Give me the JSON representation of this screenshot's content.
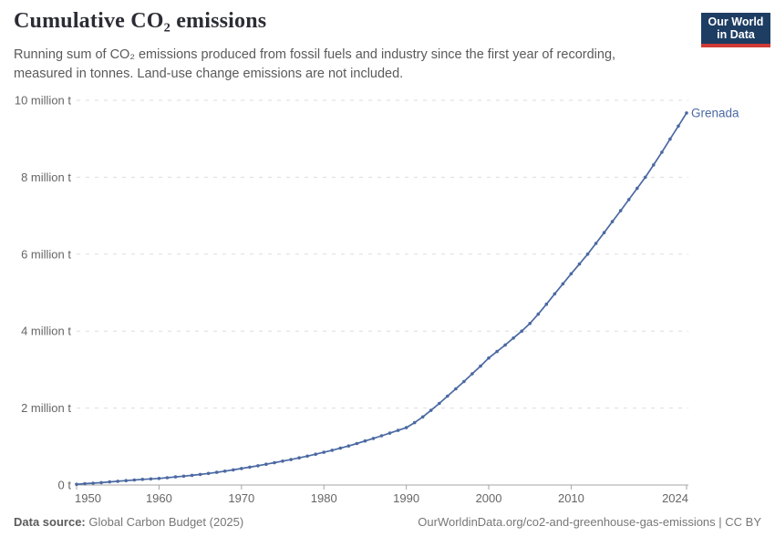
{
  "header": {
    "title": "Cumulative CO₂ emissions",
    "subtitle_line1": "Running sum of CO₂ emissions produced from fossil fuels and industry since the first year of recording,",
    "subtitle_line2": "measured in tonnes. Land-use change emissions are not included.",
    "logo_line1": "Our World",
    "logo_line2": "in Data"
  },
  "footer": {
    "source_label": "Data source:",
    "source_value": "Global Carbon Budget (2025)",
    "right": "OurWorldinData.org/co2-and-greenhouse-gas-emissions | CC BY"
  },
  "colors": {
    "line": "#4b69a2",
    "entity_label": "#4b69a2",
    "logo_bg": "#1d3d63",
    "logo_stripe": "#cf3a34",
    "grid": "#dddddd",
    "axis": "#a5a5a5",
    "tick_text": "#666666"
  },
  "chart_data": {
    "type": "line",
    "title": "Cumulative CO₂ emissions",
    "xlabel": "",
    "ylabel": "",
    "unit": "tonnes",
    "entity_label": "Grenada",
    "x_range": [
      1950,
      2024
    ],
    "ylim": [
      0,
      10000000
    ],
    "grid": "horizontal-dashed",
    "legend_position": "end-of-line",
    "yticks": [
      {
        "value": 0,
        "label": "0 t"
      },
      {
        "value": 2000000,
        "label": "2 million t"
      },
      {
        "value": 4000000,
        "label": "4 million t"
      },
      {
        "value": 6000000,
        "label": "6 million t"
      },
      {
        "value": 8000000,
        "label": "8 million t"
      },
      {
        "value": 10000000,
        "label": "10 million t"
      }
    ],
    "xticks": [
      {
        "value": 1950,
        "label": "1950"
      },
      {
        "value": 1960,
        "label": "1960"
      },
      {
        "value": 1970,
        "label": "1970"
      },
      {
        "value": 1980,
        "label": "1980"
      },
      {
        "value": 1990,
        "label": "1990"
      },
      {
        "value": 2000,
        "label": "2000"
      },
      {
        "value": 2010,
        "label": "2010"
      },
      {
        "value": 2024,
        "label": "2024"
      }
    ],
    "series": [
      {
        "name": "Grenada",
        "color": "#4b69a2",
        "years": [
          1950,
          1951,
          1952,
          1953,
          1954,
          1955,
          1956,
          1957,
          1958,
          1959,
          1960,
          1961,
          1962,
          1963,
          1964,
          1965,
          1966,
          1967,
          1968,
          1969,
          1970,
          1971,
          1972,
          1973,
          1974,
          1975,
          1976,
          1977,
          1978,
          1979,
          1980,
          1981,
          1982,
          1983,
          1984,
          1985,
          1986,
          1987,
          1988,
          1989,
          1990,
          1991,
          1992,
          1993,
          1994,
          1995,
          1996,
          1997,
          1998,
          1999,
          2000,
          2001,
          2002,
          2003,
          2004,
          2005,
          2006,
          2007,
          2008,
          2009,
          2010,
          2011,
          2012,
          2013,
          2014,
          2015,
          2016,
          2017,
          2018,
          2019,
          2020,
          2021,
          2022,
          2023,
          2024
        ],
        "values": [
          20000,
          35000,
          48000,
          62000,
          80000,
          97000,
          113000,
          130000,
          146000,
          158000,
          170000,
          190000,
          210000,
          230000,
          252000,
          275000,
          300000,
          330000,
          360000,
          393000,
          430000,
          465000,
          500000,
          540000,
          580000,
          620000,
          662000,
          706000,
          752000,
          800000,
          850000,
          902000,
          957000,
          1015000,
          1078000,
          1145000,
          1212000,
          1280000,
          1349000,
          1419000,
          1490000,
          1620000,
          1770000,
          1940000,
          2120000,
          2310000,
          2500000,
          2690000,
          2890000,
          3090000,
          3300000,
          3470000,
          3640000,
          3820000,
          4000000,
          4200000,
          4440000,
          4700000,
          4970000,
          5230000,
          5490000,
          5745000,
          6000000,
          6280000,
          6560000,
          6845000,
          7130000,
          7420000,
          7710000,
          8000000,
          8320000,
          8650000,
          8990000,
          9330000,
          9670000
        ]
      }
    ]
  }
}
